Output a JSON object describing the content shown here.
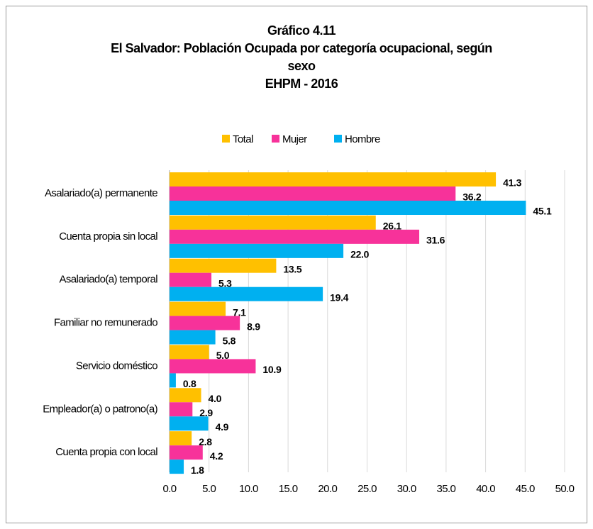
{
  "chart_data": {
    "type": "bar",
    "orientation": "horizontal",
    "title": [
      "Gráfico 4.11",
      "El Salvador: Población Ocupada por categoría ocupacional, según",
      "sexo",
      "EHPM - 2016"
    ],
    "categories": [
      "Asalariado(a) permanente",
      "Cuenta propia sin local",
      "Asalariado(a) temporal",
      "Familiar no remunerado",
      "Servicio doméstico",
      "Empleador(a) o patrono(a)",
      "Cuenta propia con local"
    ],
    "series": [
      {
        "name": "Total",
        "color": "#ffc000",
        "values": [
          41.3,
          26.1,
          13.5,
          7.1,
          5.0,
          4.0,
          2.8
        ],
        "value_labels": [
          "41.3",
          "26.1",
          "13.5",
          "7.1",
          "5.0",
          "4.0",
          "2.8"
        ]
      },
      {
        "name": "Mujer",
        "color": "#f7329a",
        "values": [
          36.2,
          31.6,
          5.3,
          8.9,
          10.9,
          2.9,
          4.2
        ],
        "value_labels": [
          "36.2",
          "31.6",
          "5.3",
          "8.9",
          "10.9",
          "2.9",
          "4.2"
        ]
      },
      {
        "name": "Hombre",
        "color": "#00b0f0",
        "values": [
          45.1,
          22.0,
          19.4,
          5.8,
          0.8,
          4.9,
          1.8
        ],
        "value_labels": [
          "45.1",
          "22.0",
          "19.4",
          "5.8",
          "0.8",
          "4.9",
          "1.8"
        ]
      }
    ],
    "xlim": [
      0,
      50
    ],
    "xticks": [
      {
        "value": 0,
        "label": "0.0"
      },
      {
        "value": 5,
        "label": "5.0"
      },
      {
        "value": 10,
        "label": "10.0"
      },
      {
        "value": 15,
        "label": "15.0"
      },
      {
        "value": 20,
        "label": "20.0"
      },
      {
        "value": 25,
        "label": "25.0"
      },
      {
        "value": 30,
        "label": "30.0"
      },
      {
        "value": 35,
        "label": "35.0"
      },
      {
        "value": 40,
        "label": "40.0"
      },
      {
        "value": 45,
        "label": "45.0"
      },
      {
        "value": 50,
        "label": "50.0"
      }
    ],
    "grid": true,
    "legend": "top"
  }
}
